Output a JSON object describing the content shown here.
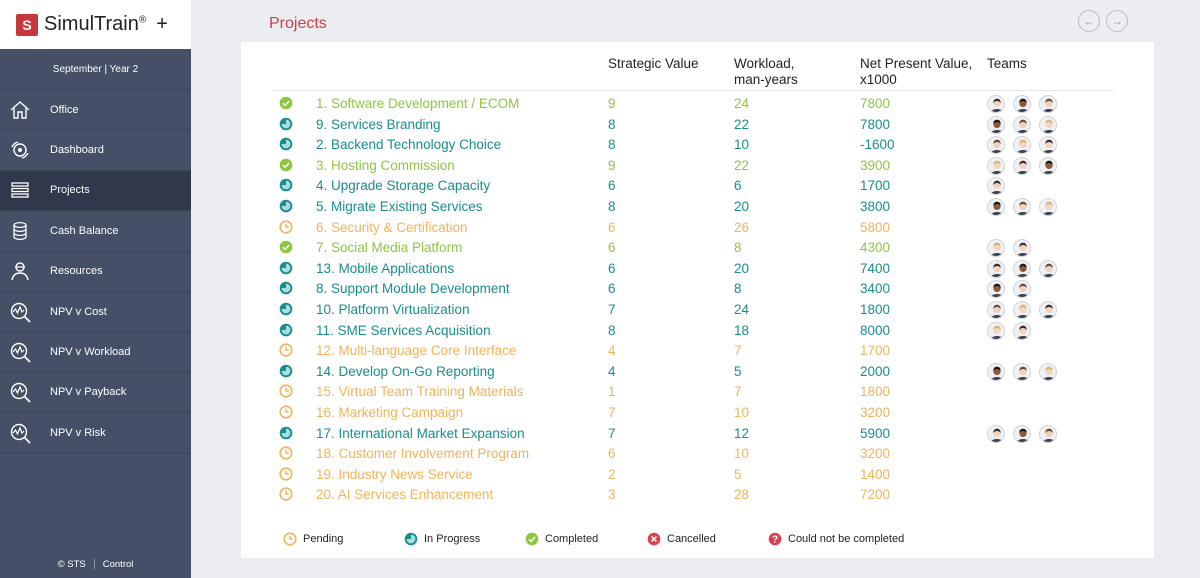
{
  "app": {
    "logo_letter": "S",
    "name": "SimulTrain",
    "reg": "®",
    "plus": "+"
  },
  "period": "September  |  Year 2",
  "sidebar": {
    "items": [
      {
        "label": "Office",
        "icon": "house-icon"
      },
      {
        "label": "Dashboard",
        "icon": "cycle-icon"
      },
      {
        "label": "Projects",
        "icon": "stack-icon"
      },
      {
        "label": "Cash Balance",
        "icon": "coins-icon"
      },
      {
        "label": "Resources",
        "icon": "person-icon"
      },
      {
        "label": "NPV v Cost",
        "icon": "chart-magnifier-icon"
      },
      {
        "label": "NPV v Workload",
        "icon": "chart-magnifier-icon"
      },
      {
        "label": "NPV v Payback",
        "icon": "chart-magnifier-icon"
      },
      {
        "label": "NPV v Risk",
        "icon": "chart-magnifier-icon"
      }
    ],
    "footer_left": "© STS",
    "footer_right": "Control"
  },
  "page": {
    "title": "Projects"
  },
  "table": {
    "headers": {
      "strategic": "Strategic Value",
      "workload_1": "Workload,",
      "workload_2": "man-years",
      "npv_1": "Net Present Value,",
      "npv_2": "x1000",
      "teams": "Teams"
    },
    "rows": [
      {
        "status": "completed",
        "name": "1. Software Development / ECOM",
        "sv": "9",
        "wl": "24",
        "npv": "7800",
        "teams": 3
      },
      {
        "status": "progress",
        "name": "9. Services Branding",
        "sv": "8",
        "wl": "22",
        "npv": "7800",
        "teams": 3
      },
      {
        "status": "progress",
        "name": "2. Backend Technology Choice",
        "sv": "8",
        "wl": "10",
        "npv": "-1600",
        "teams": 3
      },
      {
        "status": "completed",
        "name": "3. Hosting Commission",
        "sv": "9",
        "wl": "22",
        "npv": "3900",
        "teams": 3
      },
      {
        "status": "progress",
        "name": "4. Upgrade Storage Capacity",
        "sv": "6",
        "wl": "6",
        "npv": "1700",
        "teams": 1
      },
      {
        "status": "progress",
        "name": "5. Migrate Existing Services",
        "sv": "8",
        "wl": "20",
        "npv": "3800",
        "teams": 3
      },
      {
        "status": "pending",
        "name": "6. Security & Certification",
        "sv": "6",
        "wl": "26",
        "npv": "5800",
        "teams": 0
      },
      {
        "status": "completed",
        "name": "7. Social Media Platform",
        "sv": "6",
        "wl": "8",
        "npv": "4300",
        "teams": 2
      },
      {
        "status": "progress",
        "name": "13. Mobile Applications",
        "sv": "6",
        "wl": "20",
        "npv": "7400",
        "teams": 3
      },
      {
        "status": "progress",
        "name": "8. Support Module Development",
        "sv": "6",
        "wl": "8",
        "npv": "3400",
        "teams": 2
      },
      {
        "status": "progress",
        "name": "10. Platform Virtualization",
        "sv": "7",
        "wl": "24",
        "npv": "1800",
        "teams": 3
      },
      {
        "status": "progress",
        "name": "11. SME Services Acquisition",
        "sv": "8",
        "wl": "18",
        "npv": "8000",
        "teams": 2
      },
      {
        "status": "pending",
        "name": "12. Multi-language Core Interface",
        "sv": "4",
        "wl": "7",
        "npv": "1700",
        "teams": 0
      },
      {
        "status": "progress",
        "name": "14. Develop On-Go Reporting",
        "sv": "4",
        "wl": "5",
        "npv": "2000",
        "teams": 3
      },
      {
        "status": "pending",
        "name": "15. Virtual Team Training Materials",
        "sv": "1",
        "wl": "7",
        "npv": "1800",
        "teams": 0
      },
      {
        "status": "pending",
        "name": "16. Marketing Campaign",
        "sv": "7",
        "wl": "10",
        "npv": "3200",
        "teams": 0
      },
      {
        "status": "progress",
        "name": "17. International Market Expansion",
        "sv": "7",
        "wl": "12",
        "npv": "5900",
        "teams": 3
      },
      {
        "status": "pending",
        "name": "18. Customer Involvement Program",
        "sv": "6",
        "wl": "10",
        "npv": "3200",
        "teams": 0
      },
      {
        "status": "pending",
        "name": "19. Industry News Service",
        "sv": "2",
        "wl": "5",
        "npv": "1400",
        "teams": 0
      },
      {
        "status": "pending",
        "name": "20. AI Services Enhancement",
        "sv": "3",
        "wl": "28",
        "npv": "7200",
        "teams": 0
      }
    ]
  },
  "legend": {
    "pending": "Pending",
    "progress": "In Progress",
    "completed": "Completed",
    "cancelled": "Cancelled",
    "failed": "Could not be completed"
  },
  "colors": {
    "completed": "#8dc63f",
    "progress": "#1a8c8c",
    "pending": "#f0b35a",
    "cancelled": "#d9414f",
    "failed": "#d9414f",
    "accent": "#c9414f",
    "sidebar": "#455066"
  }
}
